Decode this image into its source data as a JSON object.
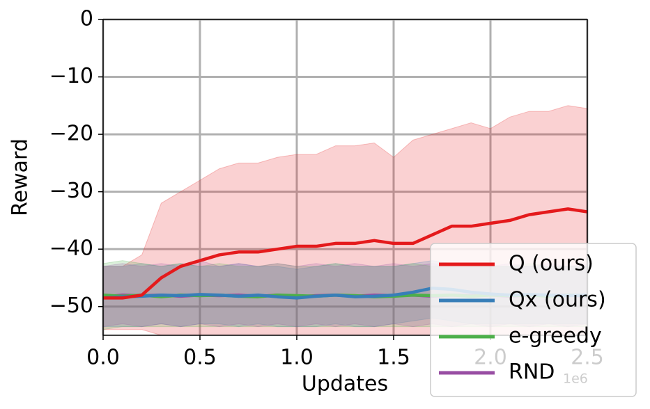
{
  "chart_data": {
    "type": "line",
    "x_label": "Updates",
    "y_label": "Reward",
    "x_offset_label": "1e6",
    "x": [
      0,
      100000,
      200000,
      300000,
      400000,
      500000,
      600000,
      700000,
      800000,
      900000,
      1000000,
      1100000,
      1200000,
      1300000,
      1400000,
      1500000,
      1600000,
      1700000,
      1800000,
      1900000,
      2000000,
      2100000,
      2200000,
      2300000,
      2400000,
      2500000
    ],
    "xlim": [
      0,
      2500000
    ],
    "ylim": [
      -55,
      0
    ],
    "xticks": [
      {
        "value": 0,
        "label": "0.0"
      },
      {
        "value": 500000,
        "label": "0.5"
      },
      {
        "value": 1000000,
        "label": "1.0"
      },
      {
        "value": 1500000,
        "label": "1.5"
      },
      {
        "value": 2000000,
        "label": "2.0"
      },
      {
        "value": 2500000,
        "label": "2.5"
      }
    ],
    "yticks": [
      {
        "value": 0,
        "label": "0"
      },
      {
        "value": -10,
        "label": "−10"
      },
      {
        "value": -20,
        "label": "−20"
      },
      {
        "value": -30,
        "label": "−30"
      },
      {
        "value": -40,
        "label": "−40"
      },
      {
        "value": -50,
        "label": "−50"
      }
    ],
    "grid": true,
    "legend": "lower right",
    "series": [
      {
        "name": "Q (ours)",
        "color": "#e41a1c",
        "values": [
          -48.5,
          -48.5,
          -48,
          -45,
          -43,
          -42,
          -41,
          -40.5,
          -40.5,
          -40,
          -39.5,
          -39.5,
          -39,
          -39,
          -38.5,
          -39,
          -39,
          -37.5,
          -36,
          -36,
          -35.5,
          -35,
          -34,
          -33.5,
          -33,
          -33.5
        ],
        "upper": [
          -43,
          -43,
          -41,
          -32,
          -30,
          -28,
          -26,
          -25,
          -25,
          -24,
          -23.5,
          -23.5,
          -22,
          -22,
          -21.5,
          -24,
          -21,
          -20,
          -19,
          -18,
          -19,
          -17,
          -16,
          -16,
          -15,
          -15.5
        ],
        "lower": [
          -54,
          -54,
          -54,
          -55,
          -55,
          -55,
          -55,
          -55,
          -55,
          -55,
          -55,
          -55,
          -55,
          -55,
          -55,
          -55,
          -55,
          -55,
          -55,
          -55,
          -55,
          -55,
          -55,
          -55,
          -55,
          -55
        ]
      },
      {
        "name": "Qx (ours)",
        "color": "#377eb8",
        "values": [
          -48.5,
          -48.3,
          -48.2,
          -48,
          -48.1,
          -47.9,
          -48,
          -48.2,
          -48,
          -48.3,
          -48.5,
          -48.2,
          -48,
          -48.3,
          -48.2,
          -48,
          -47.5,
          -46.8,
          -47,
          -47.5,
          -47.8,
          -48,
          -47.9,
          -48,
          -48.1,
          -48
        ],
        "upper": [
          -43,
          -43,
          -42.5,
          -43,
          -42.5,
          -43,
          -43,
          -42.5,
          -43,
          -43,
          -43.5,
          -43,
          -42.5,
          -43,
          -43,
          -43,
          -42.5,
          -42,
          -42.5,
          -43,
          -43,
          -43,
          -43,
          -43,
          -43,
          -43
        ],
        "lower": [
          -53.5,
          -53.5,
          -53.5,
          -53,
          -53.5,
          -53,
          -53,
          -53.5,
          -53,
          -53.5,
          -53.5,
          -53.5,
          -53,
          -53.5,
          -53.5,
          -53,
          -52.5,
          -52,
          -52.5,
          -53,
          -53,
          -53,
          -53,
          -53,
          -53,
          -53
        ]
      },
      {
        "name": "e-greedy",
        "color": "#4daf4a",
        "values": [
          -48,
          -48.2,
          -48,
          -48.3,
          -48,
          -48.1,
          -48,
          -48.2,
          -48.3,
          -48,
          -48.1,
          -48.2,
          -48,
          -48.1,
          -48.3,
          -48.2,
          -48,
          -48.1,
          -48,
          -48.2,
          -48,
          -48.1,
          -48,
          -48.2,
          -48,
          -48.1
        ],
        "upper": [
          -42.5,
          -42,
          -42.5,
          -43,
          -42.5,
          -43,
          -42.5,
          -43,
          -43,
          -42.5,
          -43,
          -43,
          -42.5,
          -43,
          -43,
          -43,
          -42.5,
          -43,
          -42.5,
          -43,
          -43,
          -43,
          -42.5,
          -43,
          -43,
          -43
        ],
        "lower": [
          -54,
          -53.5,
          -53.5,
          -53.5,
          -53.5,
          -53.5,
          -53.5,
          -53.5,
          -53.5,
          -53.5,
          -53.5,
          -53.5,
          -53.5,
          -53.5,
          -53.5,
          -53.5,
          -53.5,
          -53.5,
          -53.5,
          -53.5,
          -53.5,
          -53.5,
          -53.5,
          -53.5,
          -53.5,
          -53.5
        ]
      },
      {
        "name": "RND",
        "color": "#984ea3",
        "values": [
          -48.3,
          -48,
          -48.1,
          -48,
          -48.2,
          -48,
          -48.1,
          -48,
          -48.2,
          -48,
          -48.3,
          -48.1,
          -48,
          -48.2,
          -48,
          -48.1,
          -48,
          -48.2,
          -48,
          -48.1,
          -48,
          -48.2,
          -48,
          -48.1,
          -48,
          -48.2
        ],
        "upper": [
          -43,
          -42.5,
          -43,
          -42.5,
          -43,
          -42,
          -43,
          -42.5,
          -43,
          -42.5,
          -43,
          -42.5,
          -43,
          -42.5,
          -43,
          -42.5,
          -43,
          -42.5,
          -43,
          -42.5,
          -43,
          -42.5,
          -43,
          -42.5,
          -43,
          -42.5
        ],
        "lower": [
          -53.5,
          -53,
          -53.5,
          -53,
          -53.5,
          -53,
          -53.5,
          -53,
          -53.5,
          -53,
          -53.5,
          -53,
          -53.5,
          -53,
          -53.5,
          -53,
          -53.5,
          -53,
          -53.5,
          -53,
          -53.5,
          -53,
          -53.5,
          -53,
          -53.5,
          -53
        ]
      }
    ]
  }
}
